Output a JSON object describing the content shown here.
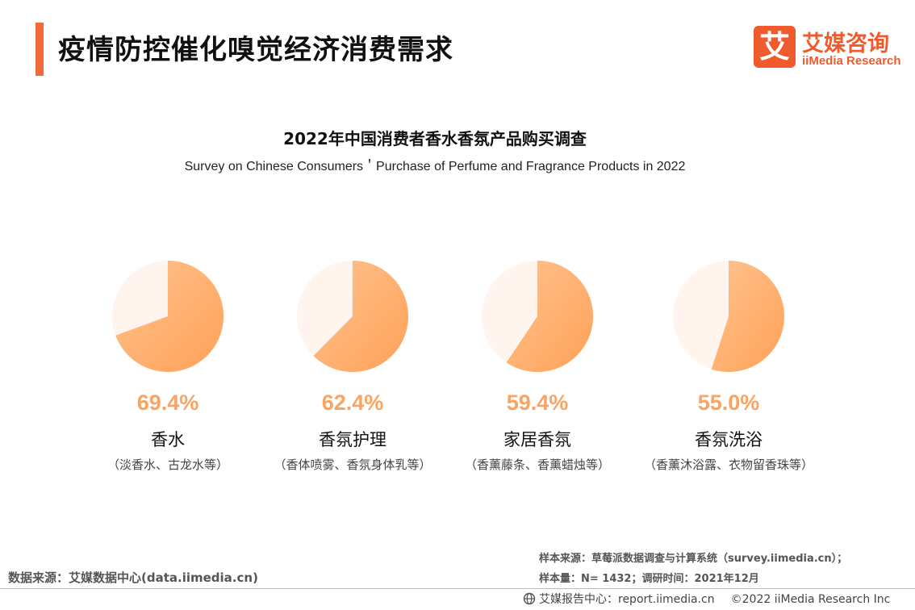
{
  "header": {
    "title": "疫情防控催化嗅觉经济消费需求",
    "accent_color": "#f26a3a"
  },
  "logo": {
    "mark": "艾",
    "name_cn": "艾媒咨询",
    "name_en": "iiMedia Research",
    "color": "#ef5b2d"
  },
  "chart_data": {
    "type": "pie",
    "title": "2022年中国消费者香水香氛产品购买调查",
    "subtitle": "Survey on Chinese Consumers＇Purchase of Perfume and Fragrance Products in 2022",
    "unit": "%",
    "items": [
      {
        "label": "香水",
        "sublabel": "（淡香水、古龙水等）",
        "value": 69.4,
        "value_text": "69.4%"
      },
      {
        "label": "香氛护理",
        "sublabel": "（香体喷雾、香氛身体乳等）",
        "value": 62.4,
        "value_text": "62.4%"
      },
      {
        "label": "家居香氛",
        "sublabel": "（香薰藤条、香薰蜡烛等）",
        "value": 59.4,
        "value_text": "59.4%"
      },
      {
        "label": "香氛洗浴",
        "sublabel": "（香薰沐浴露、衣物留香珠等）",
        "value": 55.0,
        "value_text": "55.0%"
      }
    ],
    "colors": {
      "slice_light": "#ffc38e",
      "slice_dark": "#ffa158",
      "remainder": "#fff5ee",
      "value_text": "#f9a462"
    }
  },
  "footer": {
    "source_left": "数据来源：艾媒数据中心(data.iimedia.cn)",
    "meta_line1": "样本来源：草莓派数据调查与计算系统（survey.iimedia.cn）；",
    "meta_line2": "样本量：N= 1432；调研时间：2021年12月",
    "report_center": "艾媒报告中心：report.iimedia.cn",
    "copyright": "©2022  iiMedia Research  Inc"
  }
}
